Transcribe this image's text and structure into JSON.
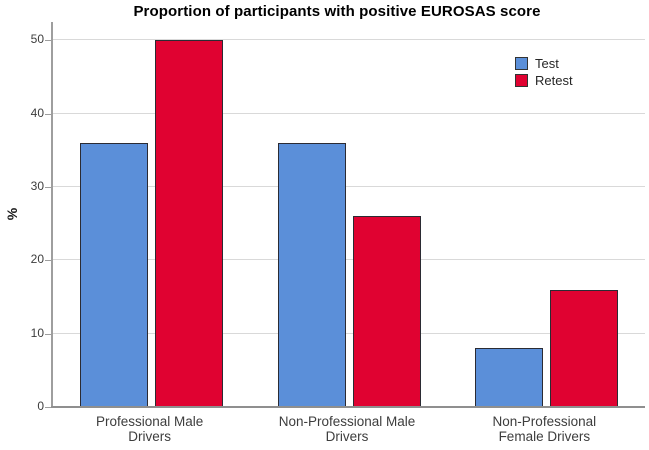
{
  "chart_data": {
    "type": "bar",
    "title": "Proportion of participants with positive EUROSAS score",
    "categories": [
      "Professional Male Drivers",
      "Non-Professional Male Drivers",
      "Non-Professional Female Drivers"
    ],
    "category_display_lines": [
      "Professional Male\nDrivers",
      "Non-Professional Male\nDrivers",
      "Non-Professional\nFemale Drivers"
    ],
    "series": [
      {
        "name": "Test",
        "color": "#5B8FD9",
        "values": [
          36,
          36,
          8
        ]
      },
      {
        "name": "Retest",
        "color": "#E00231",
        "values": [
          50,
          26,
          16
        ]
      }
    ],
    "xlabel": "",
    "ylabel": "%",
    "yticks": [
      0,
      10,
      20,
      30,
      40,
      50
    ],
    "ylim": [
      0,
      52.5
    ],
    "grid": true,
    "legend_position": "top-right",
    "bar_border_color": "#2B2B33",
    "gridline_color": "#D9D9D9",
    "axis_color": "#9E9E9E"
  }
}
